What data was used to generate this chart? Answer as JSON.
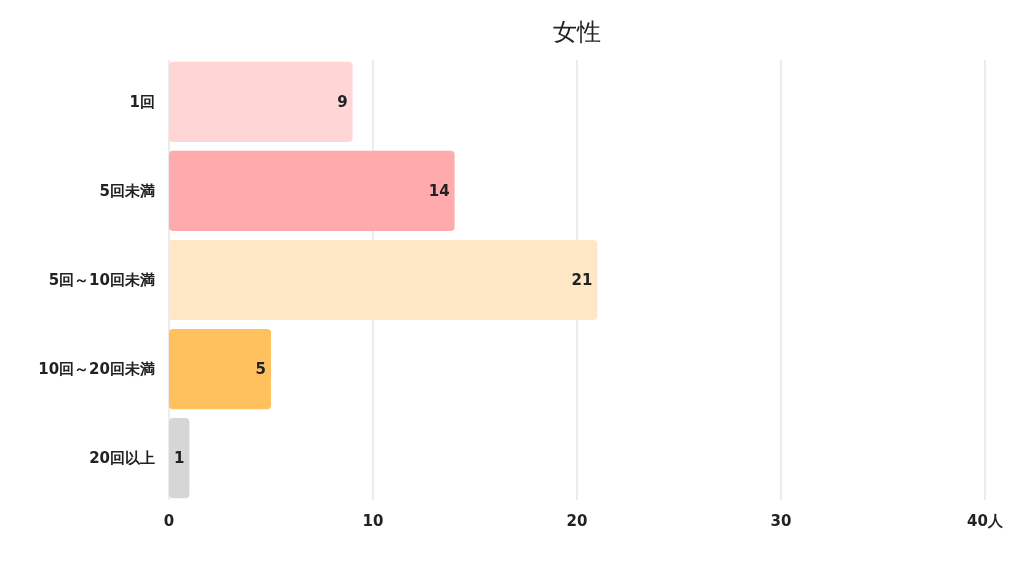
{
  "chart_data": {
    "type": "bar",
    "title": "女性",
    "orientation": "horizontal",
    "categories": [
      "1回",
      "5回未満",
      "5回～10回未満",
      "10回～20回未満",
      "20回以上"
    ],
    "values": [
      9,
      14,
      21,
      5,
      1
    ],
    "colors": [
      "#ffd5d6",
      "#ffaaad",
      "#ffe6c4",
      "#ffc05e",
      "#d6d6d6"
    ],
    "xlim": [
      0,
      40
    ],
    "xticks": [
      0,
      10,
      20,
      30,
      {
        "value": 40,
        "label": "40人"
      }
    ],
    "grid": "x",
    "data_labels": true
  }
}
